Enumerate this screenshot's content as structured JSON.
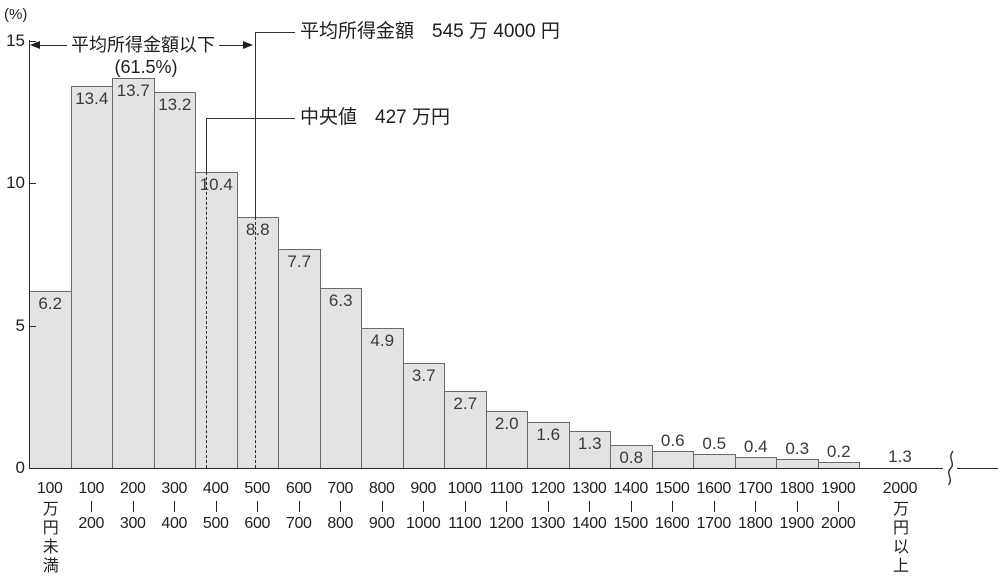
{
  "chart_data": {
    "type": "bar",
    "title": "",
    "y_axis": {
      "unit_label": "(%)",
      "ticks": [
        0,
        5,
        10,
        15
      ],
      "max": 15
    },
    "x_axis": {
      "axis_break": true,
      "categories": [
        {
          "top": "100",
          "bottom": "",
          "vertical": "万円未満"
        },
        {
          "top": "100",
          "bottom": "200",
          "vertical": ""
        },
        {
          "top": "200",
          "bottom": "300",
          "vertical": ""
        },
        {
          "top": "300",
          "bottom": "400",
          "vertical": ""
        },
        {
          "top": "400",
          "bottom": "500",
          "vertical": ""
        },
        {
          "top": "500",
          "bottom": "600",
          "vertical": ""
        },
        {
          "top": "600",
          "bottom": "700",
          "vertical": ""
        },
        {
          "top": "700",
          "bottom": "800",
          "vertical": ""
        },
        {
          "top": "800",
          "bottom": "900",
          "vertical": ""
        },
        {
          "top": "900",
          "bottom": "1000",
          "vertical": ""
        },
        {
          "top": "1000",
          "bottom": "1100",
          "vertical": ""
        },
        {
          "top": "1100",
          "bottom": "1200",
          "vertical": ""
        },
        {
          "top": "1200",
          "bottom": "1300",
          "vertical": ""
        },
        {
          "top": "1300",
          "bottom": "1400",
          "vertical": ""
        },
        {
          "top": "1400",
          "bottom": "1500",
          "vertical": ""
        },
        {
          "top": "1500",
          "bottom": "1600",
          "vertical": ""
        },
        {
          "top": "1600",
          "bottom": "1700",
          "vertical": ""
        },
        {
          "top": "1700",
          "bottom": "1800",
          "vertical": ""
        },
        {
          "top": "1800",
          "bottom": "1900",
          "vertical": ""
        },
        {
          "top": "1900",
          "bottom": "2000",
          "vertical": ""
        },
        {
          "top": "2000",
          "bottom": "",
          "vertical": "万円以上"
        }
      ]
    },
    "values": [
      6.2,
      13.4,
      13.7,
      13.2,
      10.4,
      8.8,
      7.7,
      6.3,
      4.9,
      3.7,
      2.7,
      2.0,
      1.6,
      1.3,
      0.8,
      0.6,
      0.5,
      0.4,
      0.3,
      0.2,
      1.3
    ],
    "annotations": {
      "below_mean_arrow": {
        "label": "平均所得金額以下",
        "percent": "(61.5%)"
      },
      "mean": {
        "label": "平均所得金額",
        "value_text": "545 万 4000 円",
        "amount_man_yen": 545.4
      },
      "median": {
        "label": "中央値",
        "value_text": "427 万円",
        "amount_man_yen": 427
      }
    },
    "colors": {
      "bar_fill": "#e3e3e3",
      "bar_border": "#6a6a6a",
      "line": "#2a2a2a",
      "text": "#1f1f1f"
    }
  }
}
